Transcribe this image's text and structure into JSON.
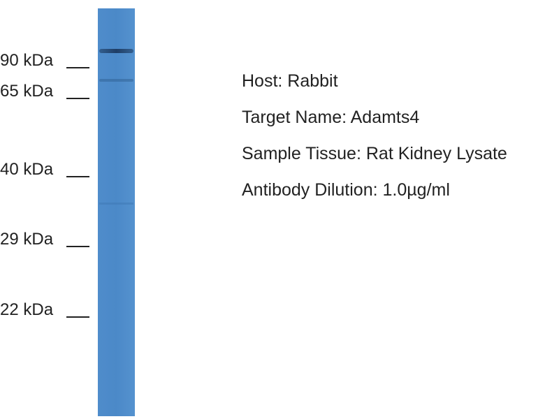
{
  "blot": {
    "markers": [
      "90 kDa",
      "65 kDa",
      "40 kDa",
      "29 kDa",
      "22 kDa"
    ],
    "info": [
      "Host: Rabbit",
      "Target Name: Adamts4",
      "Sample Tissue: Rat Kidney Lysate",
      "Antibody Dilution: 1.0µg/ml"
    ]
  }
}
